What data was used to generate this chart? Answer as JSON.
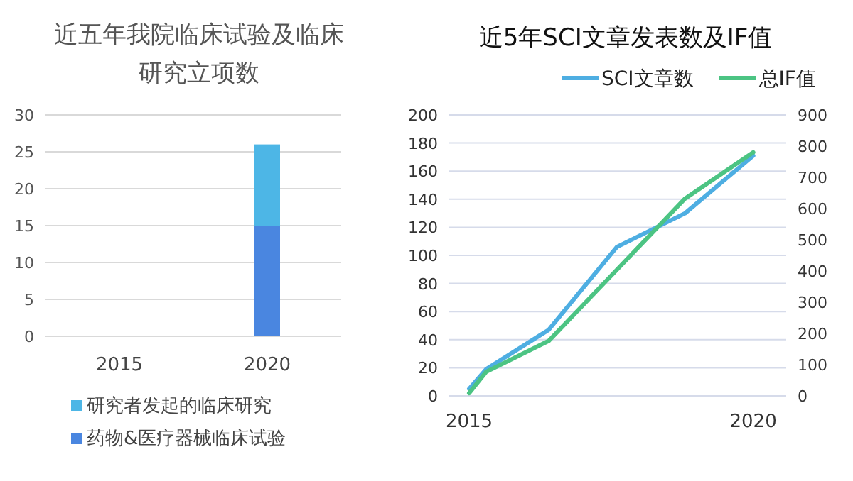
{
  "chart_data": [
    {
      "type": "bar",
      "title": "近五年我院临床试验及临床研究立项数",
      "stacked": true,
      "categories": [
        "2015",
        "2020"
      ],
      "series": [
        {
          "name": "药物&医疗器械临床试验",
          "color": "#4a86e0",
          "values": [
            0,
            15
          ]
        },
        {
          "name": "研究者发起的临床研究",
          "color": "#4db6e6",
          "values": [
            0,
            11
          ]
        }
      ],
      "ylim": [
        0,
        30
      ],
      "yticks": [
        0,
        5,
        10,
        15,
        20,
        25,
        30
      ],
      "grid": "y",
      "legend": "bottom"
    },
    {
      "type": "line",
      "title": "近5年SCI文章发表数及IF值",
      "x": [
        2015,
        2015.3,
        2016.4,
        2017.6,
        2018.8,
        2020
      ],
      "series": [
        {
          "name": "SCI文章数",
          "color": "#4eaee2",
          "values": [
            5,
            19,
            47,
            106,
            130,
            171
          ]
        },
        {
          "name": "总IF值",
          "color": "#4cc483",
          "axis": "y2",
          "values": [
            9,
            77,
            176,
            404,
            632,
            780
          ]
        }
      ],
      "xlim": [
        2014.65,
        2020.58
      ],
      "xticks": [
        2015,
        2020
      ],
      "ylim": [
        0,
        200
      ],
      "yticks": [
        0,
        20,
        40,
        60,
        80,
        100,
        120,
        140,
        160,
        180,
        200
      ],
      "y2lim": [
        0,
        900
      ],
      "y2ticks": [
        0,
        100,
        200,
        300,
        400,
        500,
        600,
        700,
        800,
        900
      ],
      "grid": "y",
      "legend": "top",
      "marker": "none",
      "line_style": "solid"
    }
  ]
}
